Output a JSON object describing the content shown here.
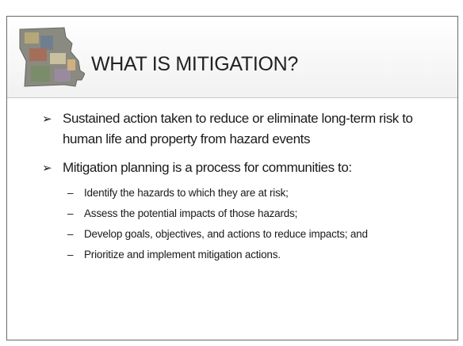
{
  "header": {
    "title": "WHAT IS MITIGATION?"
  },
  "bullets": [
    {
      "text": "Sustained action taken to reduce or eliminate long-term risk to human life and property from hazard events",
      "subs": []
    },
    {
      "text": "Mitigation planning is a process for communities to:",
      "subs": [
        "Identify the hazards to which they are at risk;",
        "Assess the potential impacts of those hazards;",
        "Develop goals, objectives, and actions to reduce impacts; and",
        "Prioritize and implement mitigation actions."
      ]
    }
  ]
}
